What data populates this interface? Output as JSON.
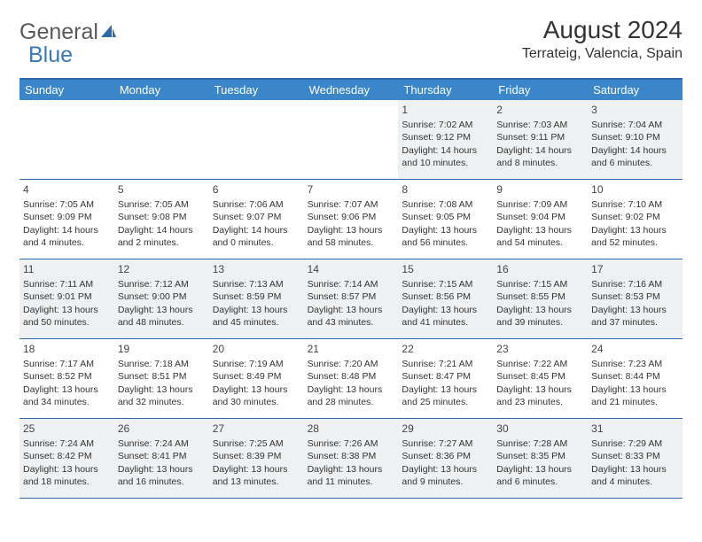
{
  "logo": {
    "text1": "General",
    "text2": "Blue"
  },
  "header": {
    "month_title": "August 2024",
    "location": "Terrateig, Valencia, Spain"
  },
  "colors": {
    "header_bg": "#3a86c8",
    "border": "#2f6aa8",
    "shaded_bg": "#eef0f2",
    "logo_blue": "#3a78b5"
  },
  "weekdays": [
    "Sunday",
    "Monday",
    "Tuesday",
    "Wednesday",
    "Thursday",
    "Friday",
    "Saturday"
  ],
  "weeks": [
    [
      {
        "blank": true
      },
      {
        "blank": true
      },
      {
        "blank": true
      },
      {
        "blank": true
      },
      {
        "day": "1",
        "sunrise": "Sunrise: 7:02 AM",
        "sunset": "Sunset: 9:12 PM",
        "daylight": "Daylight: 14 hours and 10 minutes."
      },
      {
        "day": "2",
        "sunrise": "Sunrise: 7:03 AM",
        "sunset": "Sunset: 9:11 PM",
        "daylight": "Daylight: 14 hours and 8 minutes."
      },
      {
        "day": "3",
        "sunrise": "Sunrise: 7:04 AM",
        "sunset": "Sunset: 9:10 PM",
        "daylight": "Daylight: 14 hours and 6 minutes."
      }
    ],
    [
      {
        "day": "4",
        "sunrise": "Sunrise: 7:05 AM",
        "sunset": "Sunset: 9:09 PM",
        "daylight": "Daylight: 14 hours and 4 minutes."
      },
      {
        "day": "5",
        "sunrise": "Sunrise: 7:05 AM",
        "sunset": "Sunset: 9:08 PM",
        "daylight": "Daylight: 14 hours and 2 minutes."
      },
      {
        "day": "6",
        "sunrise": "Sunrise: 7:06 AM",
        "sunset": "Sunset: 9:07 PM",
        "daylight": "Daylight: 14 hours and 0 minutes."
      },
      {
        "day": "7",
        "sunrise": "Sunrise: 7:07 AM",
        "sunset": "Sunset: 9:06 PM",
        "daylight": "Daylight: 13 hours and 58 minutes."
      },
      {
        "day": "8",
        "sunrise": "Sunrise: 7:08 AM",
        "sunset": "Sunset: 9:05 PM",
        "daylight": "Daylight: 13 hours and 56 minutes."
      },
      {
        "day": "9",
        "sunrise": "Sunrise: 7:09 AM",
        "sunset": "Sunset: 9:04 PM",
        "daylight": "Daylight: 13 hours and 54 minutes."
      },
      {
        "day": "10",
        "sunrise": "Sunrise: 7:10 AM",
        "sunset": "Sunset: 9:02 PM",
        "daylight": "Daylight: 13 hours and 52 minutes."
      }
    ],
    [
      {
        "day": "11",
        "sunrise": "Sunrise: 7:11 AM",
        "sunset": "Sunset: 9:01 PM",
        "daylight": "Daylight: 13 hours and 50 minutes."
      },
      {
        "day": "12",
        "sunrise": "Sunrise: 7:12 AM",
        "sunset": "Sunset: 9:00 PM",
        "daylight": "Daylight: 13 hours and 48 minutes."
      },
      {
        "day": "13",
        "sunrise": "Sunrise: 7:13 AM",
        "sunset": "Sunset: 8:59 PM",
        "daylight": "Daylight: 13 hours and 45 minutes."
      },
      {
        "day": "14",
        "sunrise": "Sunrise: 7:14 AM",
        "sunset": "Sunset: 8:57 PM",
        "daylight": "Daylight: 13 hours and 43 minutes."
      },
      {
        "day": "15",
        "sunrise": "Sunrise: 7:15 AM",
        "sunset": "Sunset: 8:56 PM",
        "daylight": "Daylight: 13 hours and 41 minutes."
      },
      {
        "day": "16",
        "sunrise": "Sunrise: 7:15 AM",
        "sunset": "Sunset: 8:55 PM",
        "daylight": "Daylight: 13 hours and 39 minutes."
      },
      {
        "day": "17",
        "sunrise": "Sunrise: 7:16 AM",
        "sunset": "Sunset: 8:53 PM",
        "daylight": "Daylight: 13 hours and 37 minutes."
      }
    ],
    [
      {
        "day": "18",
        "sunrise": "Sunrise: 7:17 AM",
        "sunset": "Sunset: 8:52 PM",
        "daylight": "Daylight: 13 hours and 34 minutes."
      },
      {
        "day": "19",
        "sunrise": "Sunrise: 7:18 AM",
        "sunset": "Sunset: 8:51 PM",
        "daylight": "Daylight: 13 hours and 32 minutes."
      },
      {
        "day": "20",
        "sunrise": "Sunrise: 7:19 AM",
        "sunset": "Sunset: 8:49 PM",
        "daylight": "Daylight: 13 hours and 30 minutes."
      },
      {
        "day": "21",
        "sunrise": "Sunrise: 7:20 AM",
        "sunset": "Sunset: 8:48 PM",
        "daylight": "Daylight: 13 hours and 28 minutes."
      },
      {
        "day": "22",
        "sunrise": "Sunrise: 7:21 AM",
        "sunset": "Sunset: 8:47 PM",
        "daylight": "Daylight: 13 hours and 25 minutes."
      },
      {
        "day": "23",
        "sunrise": "Sunrise: 7:22 AM",
        "sunset": "Sunset: 8:45 PM",
        "daylight": "Daylight: 13 hours and 23 minutes."
      },
      {
        "day": "24",
        "sunrise": "Sunrise: 7:23 AM",
        "sunset": "Sunset: 8:44 PM",
        "daylight": "Daylight: 13 hours and 21 minutes."
      }
    ],
    [
      {
        "day": "25",
        "sunrise": "Sunrise: 7:24 AM",
        "sunset": "Sunset: 8:42 PM",
        "daylight": "Daylight: 13 hours and 18 minutes."
      },
      {
        "day": "26",
        "sunrise": "Sunrise: 7:24 AM",
        "sunset": "Sunset: 8:41 PM",
        "daylight": "Daylight: 13 hours and 16 minutes."
      },
      {
        "day": "27",
        "sunrise": "Sunrise: 7:25 AM",
        "sunset": "Sunset: 8:39 PM",
        "daylight": "Daylight: 13 hours and 13 minutes."
      },
      {
        "day": "28",
        "sunrise": "Sunrise: 7:26 AM",
        "sunset": "Sunset: 8:38 PM",
        "daylight": "Daylight: 13 hours and 11 minutes."
      },
      {
        "day": "29",
        "sunrise": "Sunrise: 7:27 AM",
        "sunset": "Sunset: 8:36 PM",
        "daylight": "Daylight: 13 hours and 9 minutes."
      },
      {
        "day": "30",
        "sunrise": "Sunrise: 7:28 AM",
        "sunset": "Sunset: 8:35 PM",
        "daylight": "Daylight: 13 hours and 6 minutes."
      },
      {
        "day": "31",
        "sunrise": "Sunrise: 7:29 AM",
        "sunset": "Sunset: 8:33 PM",
        "daylight": "Daylight: 13 hours and 4 minutes."
      }
    ]
  ]
}
